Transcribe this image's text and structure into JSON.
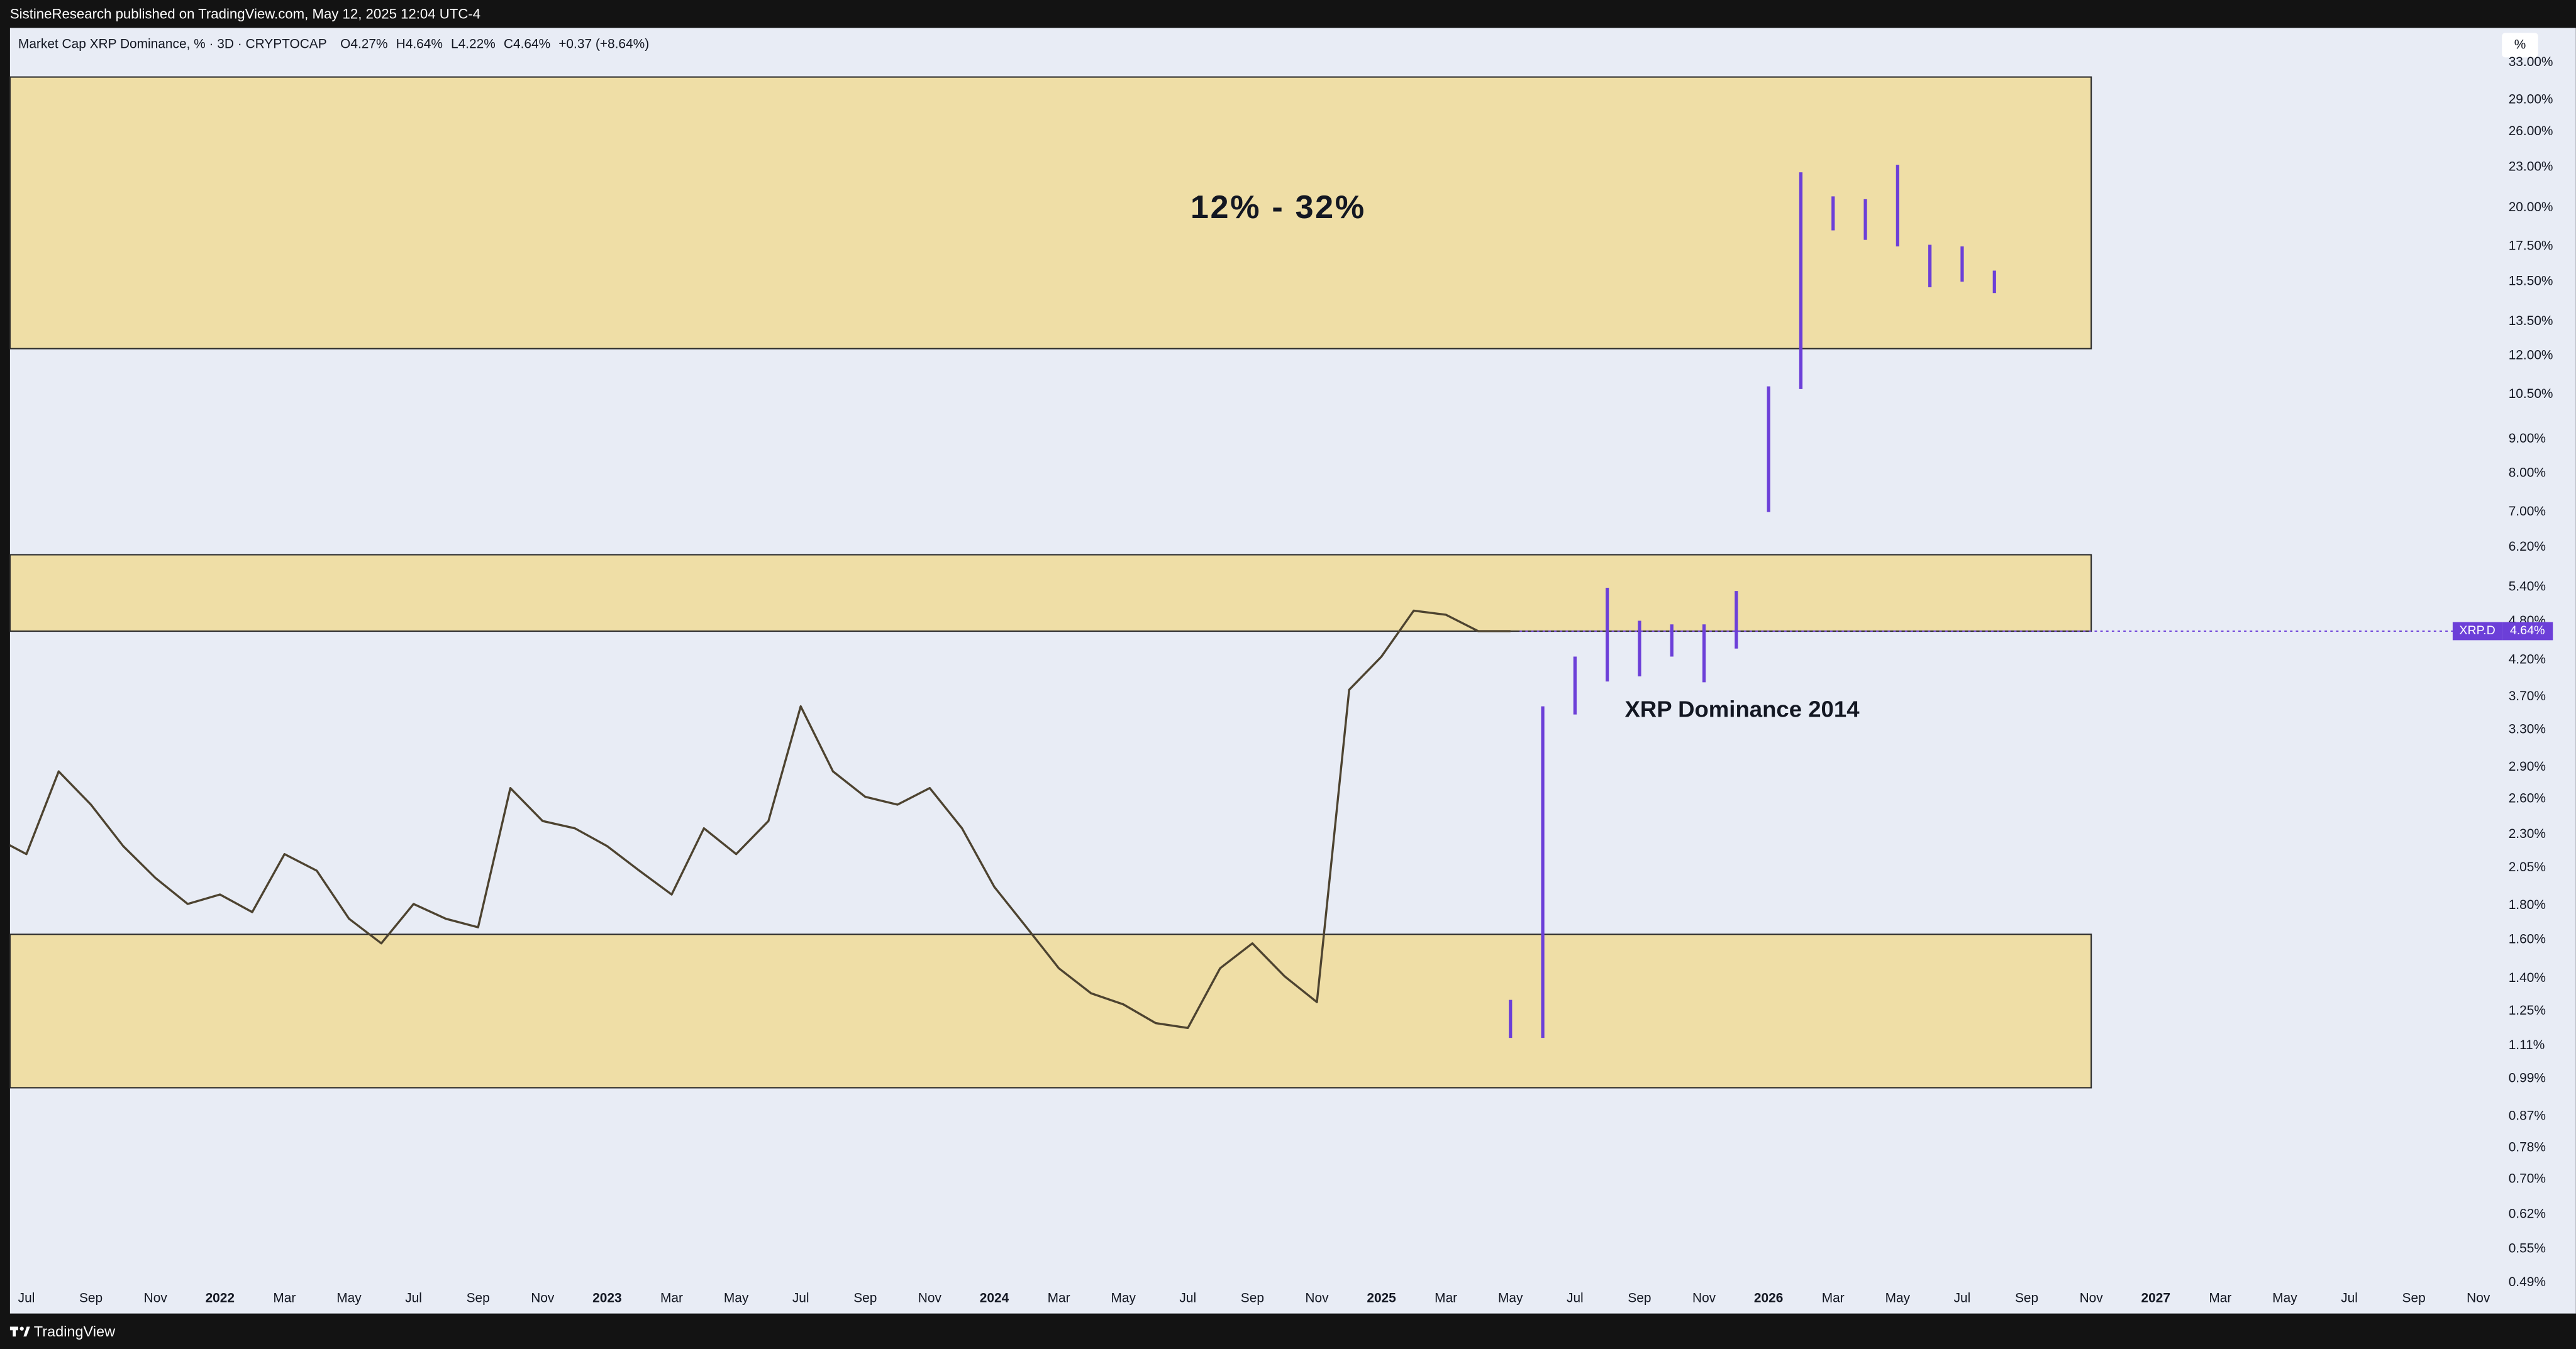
{
  "header": {
    "published": "SistineResearch published on TradingView.com, May 12, 2025 12:04 UTC-4"
  },
  "footer": {
    "brand": "TradingView"
  },
  "scale_button": "%",
  "chart_data": {
    "type": "line",
    "log_scale": true,
    "grid": false,
    "background": "#e8ecf5",
    "ylim": [
      0.485,
      37.2
    ],
    "xlim": [
      "2021-06",
      "2027-12"
    ],
    "yticks": [
      {
        "value": 33,
        "label": "33.00%"
      },
      {
        "value": 29,
        "label": "29.00%"
      },
      {
        "value": 26,
        "label": "26.00%"
      },
      {
        "value": 23,
        "label": "23.00%"
      },
      {
        "value": 20,
        "label": "20.00%"
      },
      {
        "value": 17.5,
        "label": "17.50%"
      },
      {
        "value": 15.5,
        "label": "15.50%"
      },
      {
        "value": 13.5,
        "label": "13.50%"
      },
      {
        "value": 12,
        "label": "12.00%"
      },
      {
        "value": 10.5,
        "label": "10.50%"
      },
      {
        "value": 9,
        "label": "9.00%"
      },
      {
        "value": 8,
        "label": "8.00%"
      },
      {
        "value": 7,
        "label": "7.00%"
      },
      {
        "value": 6.2,
        "label": "6.20%"
      },
      {
        "value": 5.4,
        "label": "5.40%"
      },
      {
        "value": 4.8,
        "label": "4.80%"
      },
      {
        "value": 4.2,
        "label": "4.20%"
      },
      {
        "value": 3.7,
        "label": "3.70%"
      },
      {
        "value": 3.3,
        "label": "3.30%"
      },
      {
        "value": 2.9,
        "label": "2.90%"
      },
      {
        "value": 2.6,
        "label": "2.60%"
      },
      {
        "value": 2.3,
        "label": "2.30%"
      },
      {
        "value": 2.05,
        "label": "2.05%"
      },
      {
        "value": 1.8,
        "label": "1.80%"
      },
      {
        "value": 1.6,
        "label": "1.60%"
      },
      {
        "value": 1.4,
        "label": "1.40%"
      },
      {
        "value": 1.25,
        "label": "1.25%"
      },
      {
        "value": 1.11,
        "label": "1.11%"
      },
      {
        "value": 0.99,
        "label": "0.99%"
      },
      {
        "value": 0.87,
        "label": "0.87%"
      },
      {
        "value": 0.78,
        "label": "0.78%"
      },
      {
        "value": 0.7,
        "label": "0.70%"
      },
      {
        "value": 0.62,
        "label": "0.62%"
      },
      {
        "value": 0.55,
        "label": "0.55%"
      },
      {
        "value": 0.49,
        "label": "0.49%"
      }
    ],
    "xticks": [
      {
        "value": "2021-07",
        "label": "Jul"
      },
      {
        "value": "2021-09",
        "label": "Sep"
      },
      {
        "value": "2021-11",
        "label": "Nov"
      },
      {
        "value": "2022-01",
        "label": "2022"
      },
      {
        "value": "2022-03",
        "label": "Mar"
      },
      {
        "value": "2022-05",
        "label": "May"
      },
      {
        "value": "2022-07",
        "label": "Jul"
      },
      {
        "value": "2022-09",
        "label": "Sep"
      },
      {
        "value": "2022-11",
        "label": "Nov"
      },
      {
        "value": "2023-01",
        "label": "2023"
      },
      {
        "value": "2023-03",
        "label": "Mar"
      },
      {
        "value": "2023-05",
        "label": "May"
      },
      {
        "value": "2023-07",
        "label": "Jul"
      },
      {
        "value": "2023-09",
        "label": "Sep"
      },
      {
        "value": "2023-11",
        "label": "Nov"
      },
      {
        "value": "2024-01",
        "label": "2024"
      },
      {
        "value": "2024-03",
        "label": "Mar"
      },
      {
        "value": "2024-05",
        "label": "May"
      },
      {
        "value": "2024-07",
        "label": "Jul"
      },
      {
        "value": "2024-09",
        "label": "Sep"
      },
      {
        "value": "2024-11",
        "label": "Nov"
      },
      {
        "value": "2025-01",
        "label": "2025"
      },
      {
        "value": "2025-03",
        "label": "Mar"
      },
      {
        "value": "2025-05",
        "label": "May"
      },
      {
        "value": "2025-07",
        "label": "Jul"
      },
      {
        "value": "2025-09",
        "label": "Sep"
      },
      {
        "value": "2025-11",
        "label": "Nov"
      },
      {
        "value": "2026-01",
        "label": "2026"
      },
      {
        "value": "2026-03",
        "label": "Mar"
      },
      {
        "value": "2026-05",
        "label": "May"
      },
      {
        "value": "2026-07",
        "label": "Jul"
      },
      {
        "value": "2026-09",
        "label": "Sep"
      },
      {
        "value": "2026-11",
        "label": "Nov"
      },
      {
        "value": "2027-01",
        "label": "2027"
      },
      {
        "value": "2027-03",
        "label": "Mar"
      },
      {
        "value": "2027-05",
        "label": "May"
      },
      {
        "value": "2027-07",
        "label": "Jul"
      },
      {
        "value": "2027-09",
        "label": "Sep"
      },
      {
        "value": "2027-11",
        "label": "Nov"
      }
    ],
    "legend": {
      "ohlc": [
        {
          "key": "O",
          "value": 4.27,
          "label": "4.27%"
        },
        {
          "key": "H",
          "value": 4.64,
          "label": "4.64%"
        },
        {
          "key": "L",
          "value": 4.22,
          "label": "4.22%"
        },
        {
          "key": "C",
          "value": 4.64,
          "label": "4.64%"
        }
      ],
      "change": "+0.37 (+8.64%)"
    },
    "zones": [
      {
        "low": 12.3,
        "high": 31.4,
        "end": "2026-11",
        "color": "#efdea6",
        "annotation": "12% - 32%"
      },
      {
        "low": 4.64,
        "high": 6.04,
        "end": "2026-11",
        "color": "#efdea6"
      },
      {
        "low": 0.96,
        "high": 1.63,
        "end": "2026-11",
        "color": "#efdea6"
      }
    ],
    "series": [
      {
        "name": "Market Cap XRP Dominance, % · 3D · CRYPTOCAP",
        "style": "line",
        "color": "#4d4330",
        "x": [
          "2021-06",
          "2021-07",
          "2021-08",
          "2021-09",
          "2021-10",
          "2021-11",
          "2021-12",
          "2022-01",
          "2022-02",
          "2022-03",
          "2022-04",
          "2022-05",
          "2022-06",
          "2022-07",
          "2022-08",
          "2022-09",
          "2022-10",
          "2022-11",
          "2022-12",
          "2023-01",
          "2023-02",
          "2023-03",
          "2023-04",
          "2023-05",
          "2023-06",
          "2023-07",
          "2023-08",
          "2023-09",
          "2023-10",
          "2023-11",
          "2023-12",
          "2024-01",
          "2024-02",
          "2024-03",
          "2024-04",
          "2024-05",
          "2024-06",
          "2024-07",
          "2024-08",
          "2024-09",
          "2024-10",
          "2024-11",
          "2024-12",
          "2025-01",
          "2025-02",
          "2025-03",
          "2025-04",
          "2025-05"
        ],
        "values": [
          2.28,
          2.15,
          2.86,
          2.55,
          2.21,
          1.98,
          1.81,
          1.87,
          1.76,
          2.15,
          2.03,
          1.72,
          1.58,
          1.81,
          1.72,
          1.67,
          2.7,
          2.41,
          2.35,
          2.21,
          2.03,
          1.87,
          2.35,
          2.15,
          2.41,
          3.58,
          2.86,
          2.62,
          2.55,
          2.7,
          2.35,
          1.92,
          1.67,
          1.45,
          1.33,
          1.28,
          1.2,
          1.18,
          1.45,
          1.58,
          1.41,
          1.29,
          3.79,
          4.25,
          4.98,
          4.91,
          4.64,
          4.64
        ]
      },
      {
        "name": "XRP Dominance 2014",
        "style": "range",
        "color": "#6c3fd8",
        "x": [
          "2025-05",
          "2025-06",
          "2025-07",
          "2025-08",
          "2025-09",
          "2025-10",
          "2025-11",
          "2025-12",
          "2026-01",
          "2026-02",
          "2026-03",
          "2026-04",
          "2026-05",
          "2026-06",
          "2026-07",
          "2026-08"
        ],
        "high": [
          1.3,
          3.58,
          4.25,
          5.39,
          4.81,
          4.75,
          4.75,
          5.33,
          10.8,
          22.6,
          20.8,
          20.6,
          23.2,
          17.6,
          17.5,
          16.1
        ],
        "low": [
          1.14,
          1.14,
          3.48,
          3.9,
          3.97,
          4.25,
          3.89,
          4.37,
          7.0,
          10.7,
          18.5,
          17.9,
          17.5,
          15.2,
          15.5,
          14.9
        ]
      }
    ],
    "last": {
      "label": "XRP.D",
      "value": 4.64,
      "value_label": "4.64%",
      "color": "#6c3fd8"
    }
  }
}
